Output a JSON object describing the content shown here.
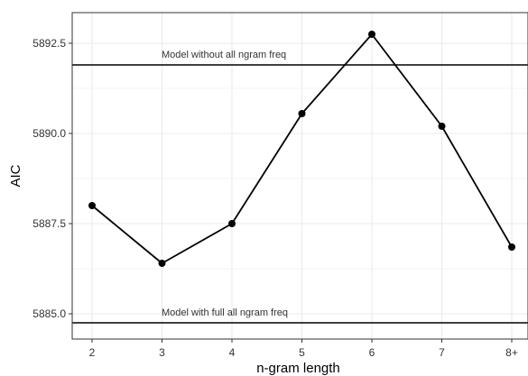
{
  "chart_data": {
    "type": "line",
    "xlabel": "n-gram length",
    "ylabel": "AIC",
    "categories": [
      "2",
      "3",
      "4",
      "5",
      "6",
      "7",
      "8+"
    ],
    "series": [
      {
        "values": [
          5888.0,
          5886.4,
          5887.5,
          5890.55,
          5892.75,
          5890.2,
          5886.85
        ]
      }
    ],
    "reference_lines": [
      {
        "label": "Model without all ngram freq",
        "value": 5891.9
      },
      {
        "label": "Model with full all ngram freq",
        "value": 5884.75
      }
    ],
    "ylim": [
      5884.3,
      5893.35
    ],
    "yticks": [
      5885.0,
      5887.5,
      5890.0,
      5892.5
    ],
    "ytick_labels": [
      "5885.0",
      "5887.5",
      "5890.0",
      "5892.5"
    ],
    "grid": true,
    "legend": "none",
    "colors": {
      "line": "#000000",
      "grid": "#ebebeb",
      "border": "#333333"
    }
  }
}
